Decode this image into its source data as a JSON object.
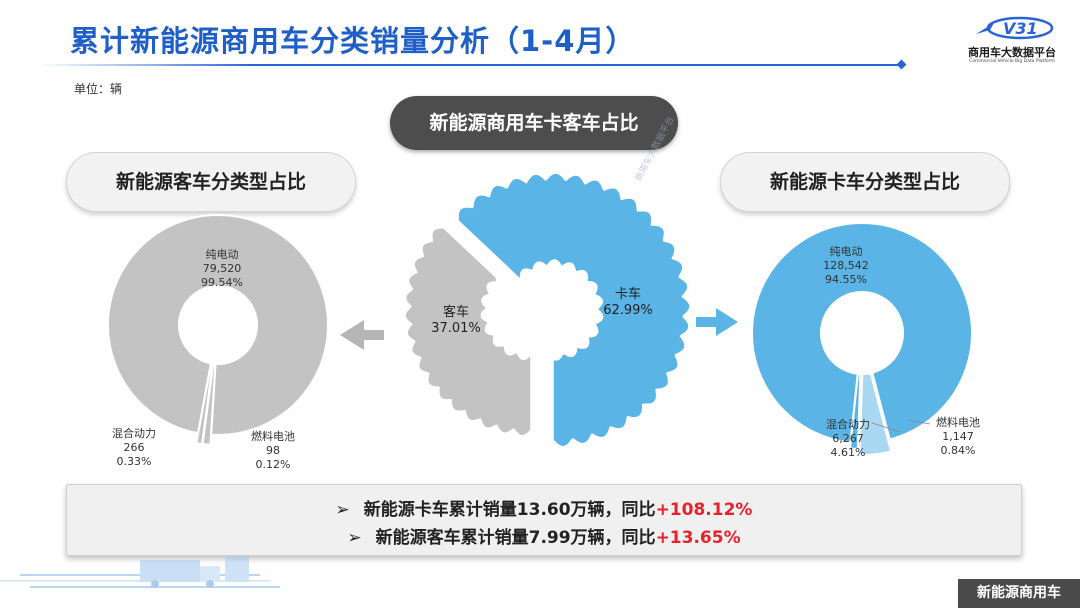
{
  "header": {
    "title": "累计新能源商用车分类销量分析（1-4月）",
    "logo_text": "商用车大数据平台",
    "logo_en": "Commercial Vehicle Big Data Platform",
    "logo_badge": "V31"
  },
  "unit": "单位：辆",
  "pills": {
    "center": "新能源商用车卡客车占比",
    "left": "新能源客车分类型占比",
    "right": "新能源卡车分类型占比"
  },
  "colors": {
    "brand_blue": "#1f5fc8",
    "truck_blue": "#5ab4e5",
    "bus_gray": "#c3c3c3",
    "highlight_red": "#e8212b"
  },
  "chart_data": [
    {
      "type": "pie",
      "name_label": "",
      "categories": [
        "客车",
        "卡车"
      ],
      "values": [
        37.01,
        62.99
      ],
      "value_labels": [
        "37.01%",
        "62.99%"
      ],
      "colors": [
        "#c3c3c3",
        "#5ab4e5"
      ]
    },
    {
      "type": "pie",
      "categories": [
        "纯电动",
        "混合动力",
        "燃料电池"
      ],
      "values": [
        79520,
        266,
        98
      ],
      "value_labels": [
        "79,520",
        "266",
        "98"
      ],
      "percent_labels": [
        "99.54%",
        "0.33%",
        "0.12%"
      ],
      "colors": [
        "#c3c3c3",
        "#c3c3c3",
        "#c3c3c3"
      ]
    },
    {
      "type": "pie",
      "categories": [
        "纯电动",
        "混合动力",
        "燃料电池"
      ],
      "values": [
        128542,
        6267,
        1147
      ],
      "value_labels": [
        "128,542",
        "6,267",
        "1,147"
      ],
      "percent_labels": [
        "94.55%",
        "4.61%",
        "0.84%"
      ],
      "colors": [
        "#5ab4e5",
        "#a9d9f2",
        "#5ab4e5"
      ]
    }
  ],
  "summary": {
    "arrow": "➢",
    "line1_text": "新能源卡车累计销量13.60万辆，同比",
    "line1_highlight": "+108.12%",
    "line2_text": "新能源客车累计销量7.99万辆，同比",
    "line2_highlight": "+13.65%"
  },
  "footer": "新能源商用车"
}
